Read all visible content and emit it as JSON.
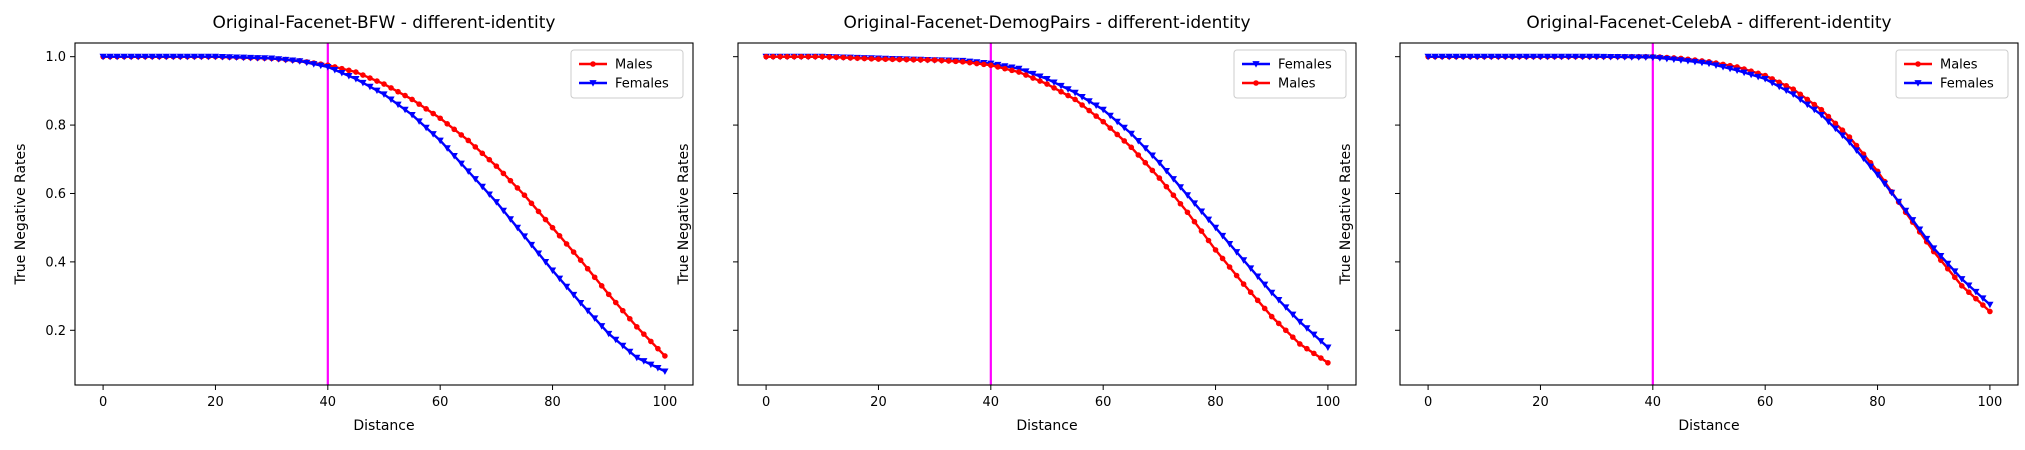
{
  "chart_data": [
    {
      "type": "line",
      "title": "Original-Facenet-BFW - different-identity",
      "xlabel": "Distance",
      "ylabel": "True Negative Rates",
      "xlim": [
        -5,
        105
      ],
      "ylim": [
        0.04,
        1.04
      ],
      "xticks": [
        0,
        20,
        40,
        60,
        80,
        100
      ],
      "yticks": [
        0.2,
        0.4,
        0.6,
        0.8,
        1.0
      ],
      "show_ytick_labels": true,
      "grid": false,
      "legend": "top-right",
      "vline": {
        "x": 40,
        "color": "#ff00ff"
      },
      "series": [
        {
          "name": "Males",
          "color": "#ff0000",
          "marker": "circle",
          "x": [
            0,
            10,
            20,
            30,
            35,
            40,
            45,
            50,
            55,
            60,
            65,
            70,
            75,
            80,
            85,
            90,
            95,
            100
          ],
          "values": [
            1.0,
            1.0,
            1.0,
            0.995,
            0.988,
            0.975,
            0.955,
            0.92,
            0.875,
            0.82,
            0.755,
            0.68,
            0.595,
            0.5,
            0.405,
            0.305,
            0.21,
            0.125
          ]
        },
        {
          "name": "Females",
          "color": "#0000ff",
          "marker": "triangle-down",
          "x": [
            0,
            10,
            20,
            30,
            35,
            40,
            45,
            50,
            55,
            60,
            65,
            70,
            75,
            80,
            85,
            90,
            95,
            100
          ],
          "values": [
            1.0,
            1.0,
            1.0,
            0.995,
            0.987,
            0.97,
            0.935,
            0.89,
            0.83,
            0.755,
            0.665,
            0.575,
            0.475,
            0.375,
            0.28,
            0.19,
            0.12,
            0.08
          ]
        }
      ]
    },
    {
      "type": "line",
      "title": "Original-Facenet-DemogPairs - different-identity",
      "xlabel": "Distance",
      "ylabel": "True Negative Rates",
      "xlim": [
        -5,
        105
      ],
      "ylim": [
        0.04,
        1.04
      ],
      "xticks": [
        0,
        20,
        40,
        60,
        80,
        100
      ],
      "yticks": [
        0.2,
        0.4,
        0.6,
        0.8,
        1.0
      ],
      "show_ytick_labels": false,
      "grid": false,
      "legend": "top-right",
      "vline": {
        "x": 40,
        "color": "#ff00ff"
      },
      "series": [
        {
          "name": "Females",
          "color": "#0000ff",
          "marker": "triangle-down",
          "x": [
            0,
            10,
            20,
            30,
            35,
            40,
            45,
            50,
            55,
            60,
            65,
            70,
            75,
            80,
            85,
            90,
            95,
            100
          ],
          "values": [
            1.0,
            1.0,
            0.995,
            0.99,
            0.988,
            0.98,
            0.965,
            0.935,
            0.895,
            0.845,
            0.775,
            0.69,
            0.595,
            0.5,
            0.405,
            0.31,
            0.225,
            0.15
          ]
        },
        {
          "name": "Males",
          "color": "#ff0000",
          "marker": "circle",
          "x": [
            0,
            10,
            20,
            30,
            35,
            40,
            45,
            50,
            55,
            60,
            65,
            70,
            75,
            80,
            85,
            90,
            95,
            100
          ],
          "values": [
            1.0,
            1.0,
            0.993,
            0.99,
            0.985,
            0.975,
            0.955,
            0.92,
            0.875,
            0.81,
            0.735,
            0.645,
            0.545,
            0.435,
            0.335,
            0.24,
            0.16,
            0.105
          ]
        }
      ]
    },
    {
      "type": "line",
      "title": "Original-Facenet-CelebA - different-identity",
      "xlabel": "Distance",
      "ylabel": "True Negative Rates",
      "xlim": [
        -5,
        105
      ],
      "ylim": [
        0.04,
        1.04
      ],
      "xticks": [
        0,
        20,
        40,
        60,
        80,
        100
      ],
      "yticks": [
        0.2,
        0.4,
        0.6,
        0.8,
        1.0
      ],
      "show_ytick_labels": false,
      "grid": false,
      "legend": "top-right",
      "vline": {
        "x": 40,
        "color": "#ff00ff"
      },
      "series": [
        {
          "name": "Males",
          "color": "#ff0000",
          "marker": "circle",
          "x": [
            0,
            10,
            20,
            30,
            40,
            45,
            50,
            55,
            60,
            65,
            70,
            75,
            80,
            85,
            90,
            95,
            100
          ],
          "values": [
            1.0,
            1.0,
            1.0,
            1.0,
            1.0,
            0.995,
            0.985,
            0.97,
            0.945,
            0.905,
            0.845,
            0.765,
            0.665,
            0.545,
            0.43,
            0.33,
            0.255
          ]
        },
        {
          "name": "Females",
          "color": "#0000ff",
          "marker": "triangle-down",
          "x": [
            0,
            10,
            20,
            30,
            40,
            45,
            50,
            55,
            60,
            65,
            70,
            75,
            80,
            85,
            90,
            95,
            100
          ],
          "values": [
            1.0,
            1.0,
            1.0,
            1.0,
            0.998,
            0.99,
            0.98,
            0.96,
            0.935,
            0.89,
            0.83,
            0.75,
            0.655,
            0.55,
            0.44,
            0.35,
            0.275
          ]
        }
      ]
    }
  ]
}
